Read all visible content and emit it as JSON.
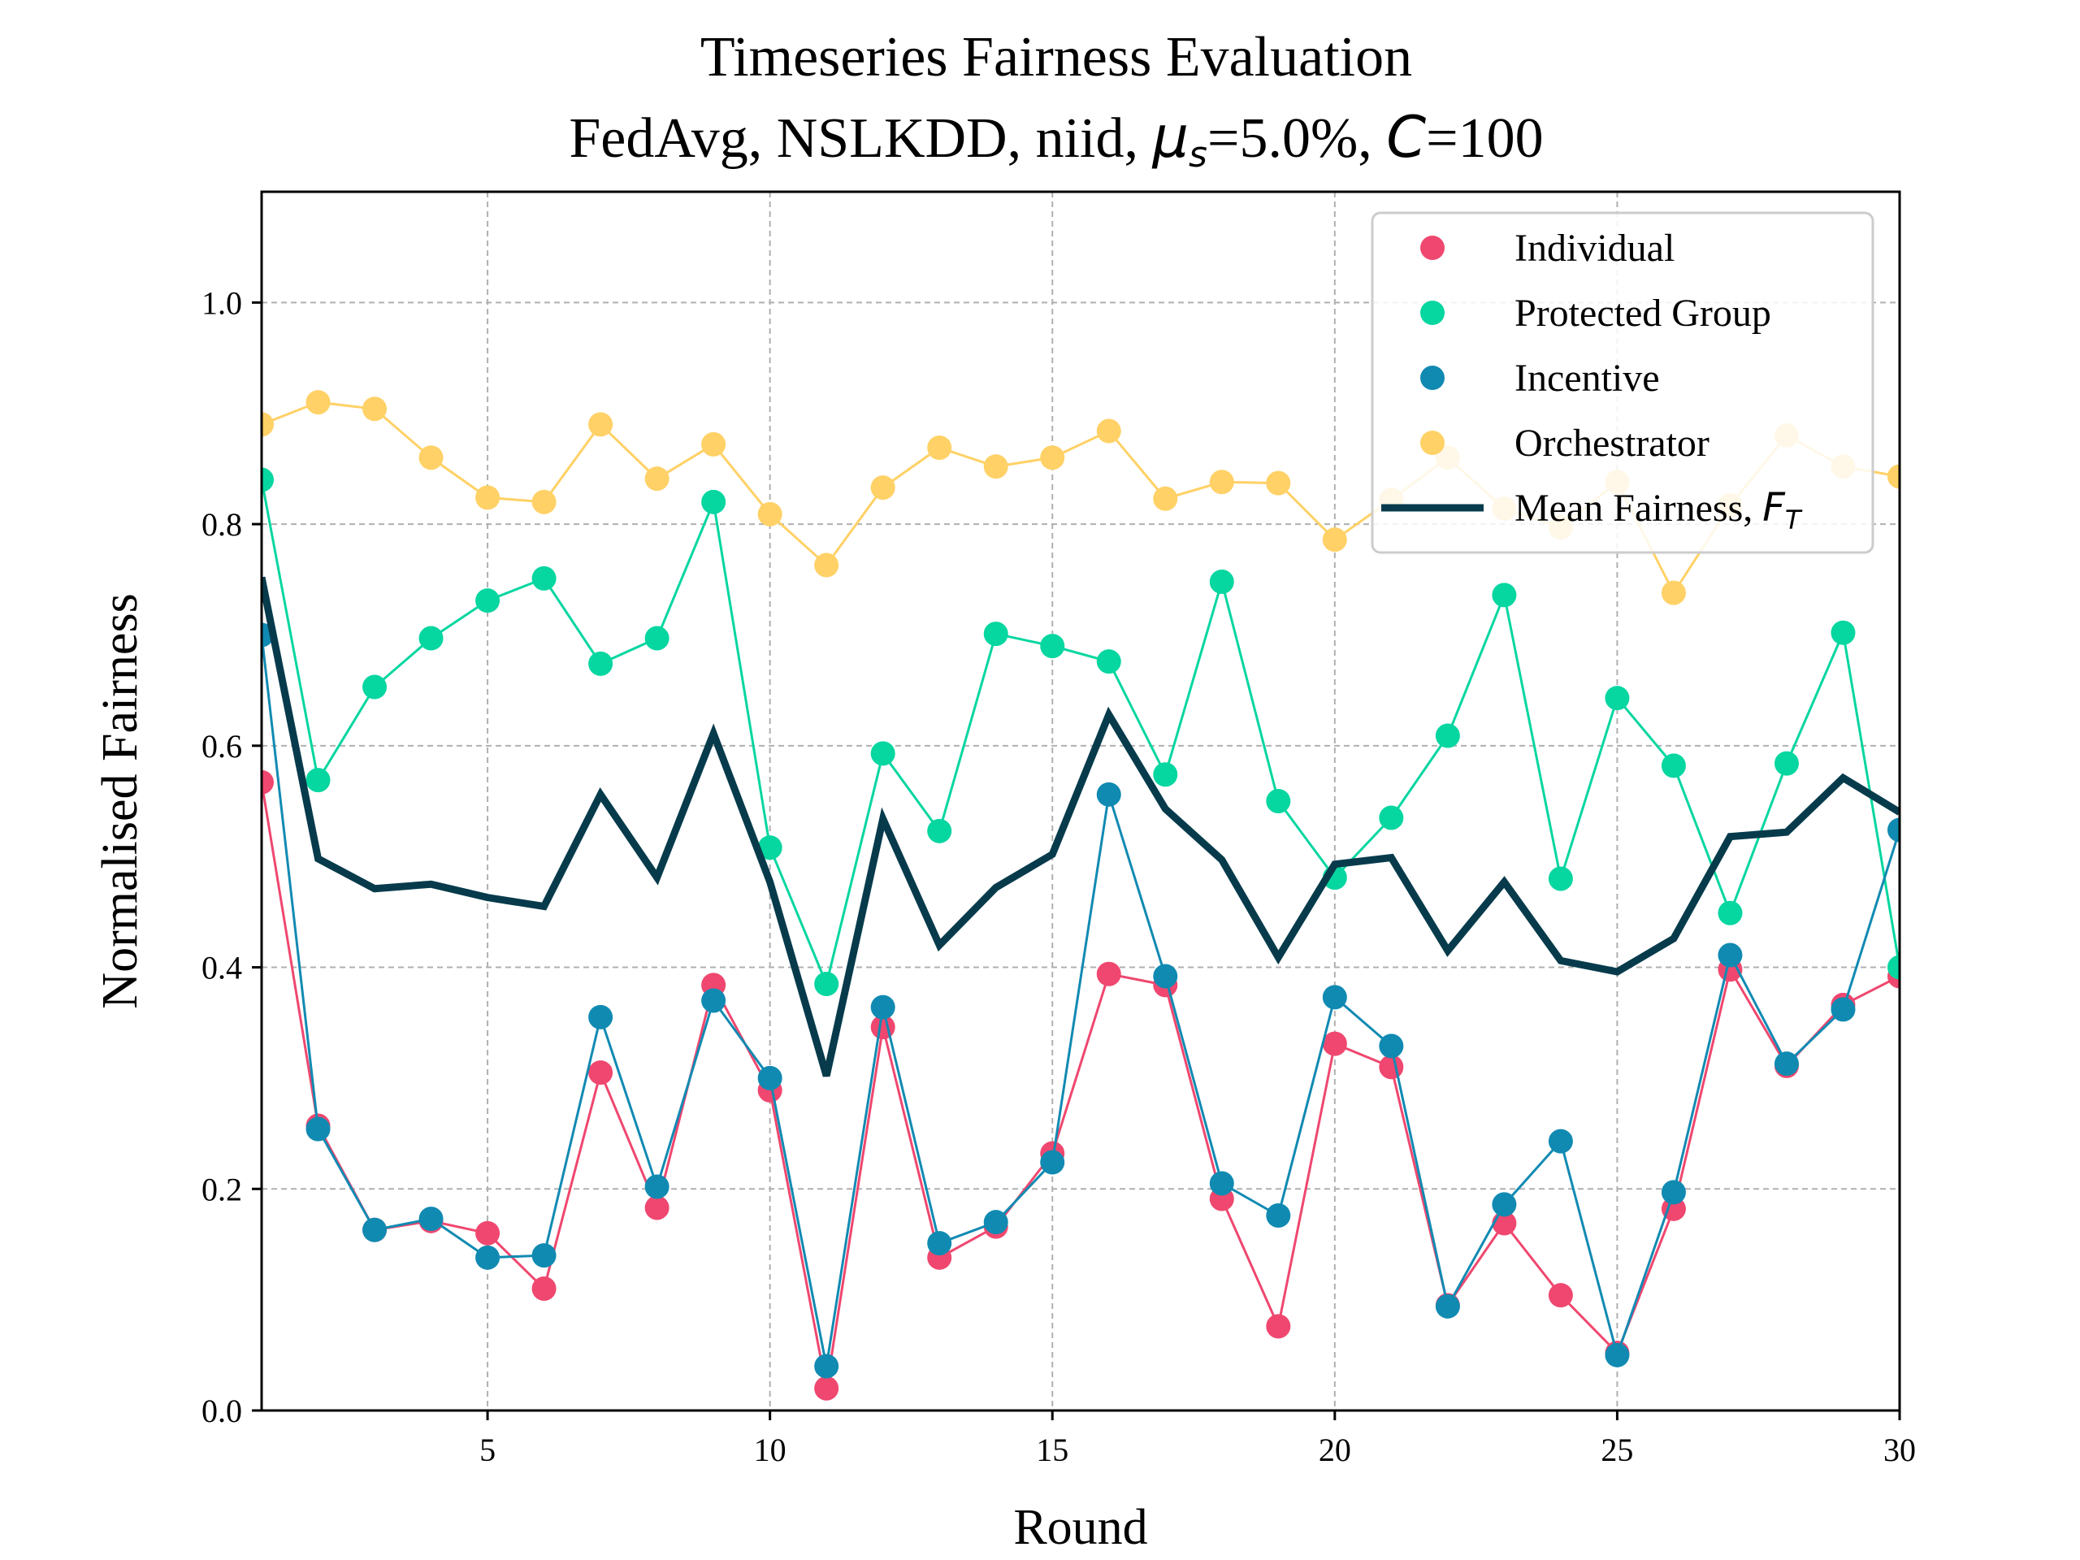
{
  "chart_data": {
    "type": "line",
    "title_line1": "Timeseries Fairness Evaluation",
    "title_line2_prefix": "FedAvg, NSLKDD, niid, ",
    "title_mu": "μ",
    "title_mu_sub": "s",
    "title_mid": "=5.0%, ",
    "title_c": "C",
    "title_end": "=100",
    "xlabel": "Round",
    "ylabel": "Normalised Fairness",
    "xlim": [
      1,
      30
    ],
    "ylim": [
      0,
      1.1
    ],
    "xticks": [
      5,
      10,
      15,
      20,
      25,
      30
    ],
    "xtick_labels": [
      "5",
      "10",
      "15",
      "20",
      "25",
      "30"
    ],
    "yticks": [
      0.0,
      0.2,
      0.4,
      0.6,
      0.8,
      1.0
    ],
    "ytick_labels": [
      "0.0",
      "0.2",
      "0.4",
      "0.6",
      "0.8",
      "1.0"
    ],
    "grid": true,
    "legend_position": "top-right",
    "x": [
      1,
      2,
      3,
      4,
      5,
      6,
      7,
      8,
      9,
      10,
      11,
      12,
      13,
      14,
      15,
      16,
      17,
      18,
      19,
      20,
      21,
      22,
      23,
      24,
      25,
      26,
      27,
      28,
      29,
      30
    ],
    "series": [
      {
        "name": "Individual",
        "key": "individual",
        "color": "#ef476f",
        "style": "line-marker",
        "values": [
          0.567,
          0.257,
          0.163,
          0.171,
          0.16,
          0.11,
          0.305,
          0.183,
          0.384,
          0.289,
          0.02,
          0.346,
          0.138,
          0.166,
          0.232,
          0.394,
          0.384,
          0.191,
          0.076,
          0.331,
          0.31,
          0.095,
          0.169,
          0.104,
          0.052,
          0.182,
          0.398,
          0.311,
          0.366,
          0.392
        ]
      },
      {
        "name": "Protected Group",
        "key": "protected",
        "color": "#06d6a0",
        "style": "line-marker",
        "values": [
          0.84,
          0.569,
          0.653,
          0.697,
          0.731,
          0.751,
          0.674,
          0.697,
          0.82,
          0.508,
          0.385,
          0.593,
          0.523,
          0.701,
          0.69,
          0.676,
          0.574,
          0.748,
          0.55,
          0.481,
          0.535,
          0.609,
          0.736,
          0.48,
          0.643,
          0.582,
          0.449,
          0.584,
          0.702,
          0.4
        ]
      },
      {
        "name": "Incentive",
        "key": "incentive",
        "color": "#118ab2",
        "style": "line-marker",
        "values": [
          0.7,
          0.254,
          0.163,
          0.173,
          0.138,
          0.14,
          0.355,
          0.202,
          0.37,
          0.3,
          0.04,
          0.364,
          0.151,
          0.17,
          0.224,
          0.556,
          0.392,
          0.205,
          0.176,
          0.373,
          0.329,
          0.094,
          0.186,
          0.243,
          0.05,
          0.197,
          0.411,
          0.313,
          0.362,
          0.524
        ]
      },
      {
        "name": "Orchestrator",
        "key": "orchestrator",
        "color": "#ffd166",
        "style": "line-marker",
        "values": [
          0.89,
          0.91,
          0.904,
          0.86,
          0.824,
          0.82,
          0.89,
          0.841,
          0.872,
          0.809,
          0.763,
          0.833,
          0.869,
          0.852,
          0.86,
          0.884,
          0.823,
          0.838,
          0.837,
          0.786,
          0.822,
          0.86,
          0.814,
          0.797,
          0.838,
          0.738,
          0.817,
          0.88,
          0.852,
          0.843
        ]
      },
      {
        "name": "Mean Fairness, ",
        "name_math": "F",
        "name_math_sub": "T",
        "key": "mean",
        "color": "#073b4c",
        "style": "thick-line",
        "values": [
          0.752,
          0.498,
          0.471,
          0.475,
          0.463,
          0.455,
          0.556,
          0.481,
          0.611,
          0.477,
          0.302,
          0.534,
          0.42,
          0.472,
          0.502,
          0.628,
          0.543,
          0.497,
          0.409,
          0.493,
          0.499,
          0.415,
          0.477,
          0.406,
          0.396,
          0.426,
          0.518,
          0.522,
          0.571,
          0.54
        ]
      }
    ]
  }
}
